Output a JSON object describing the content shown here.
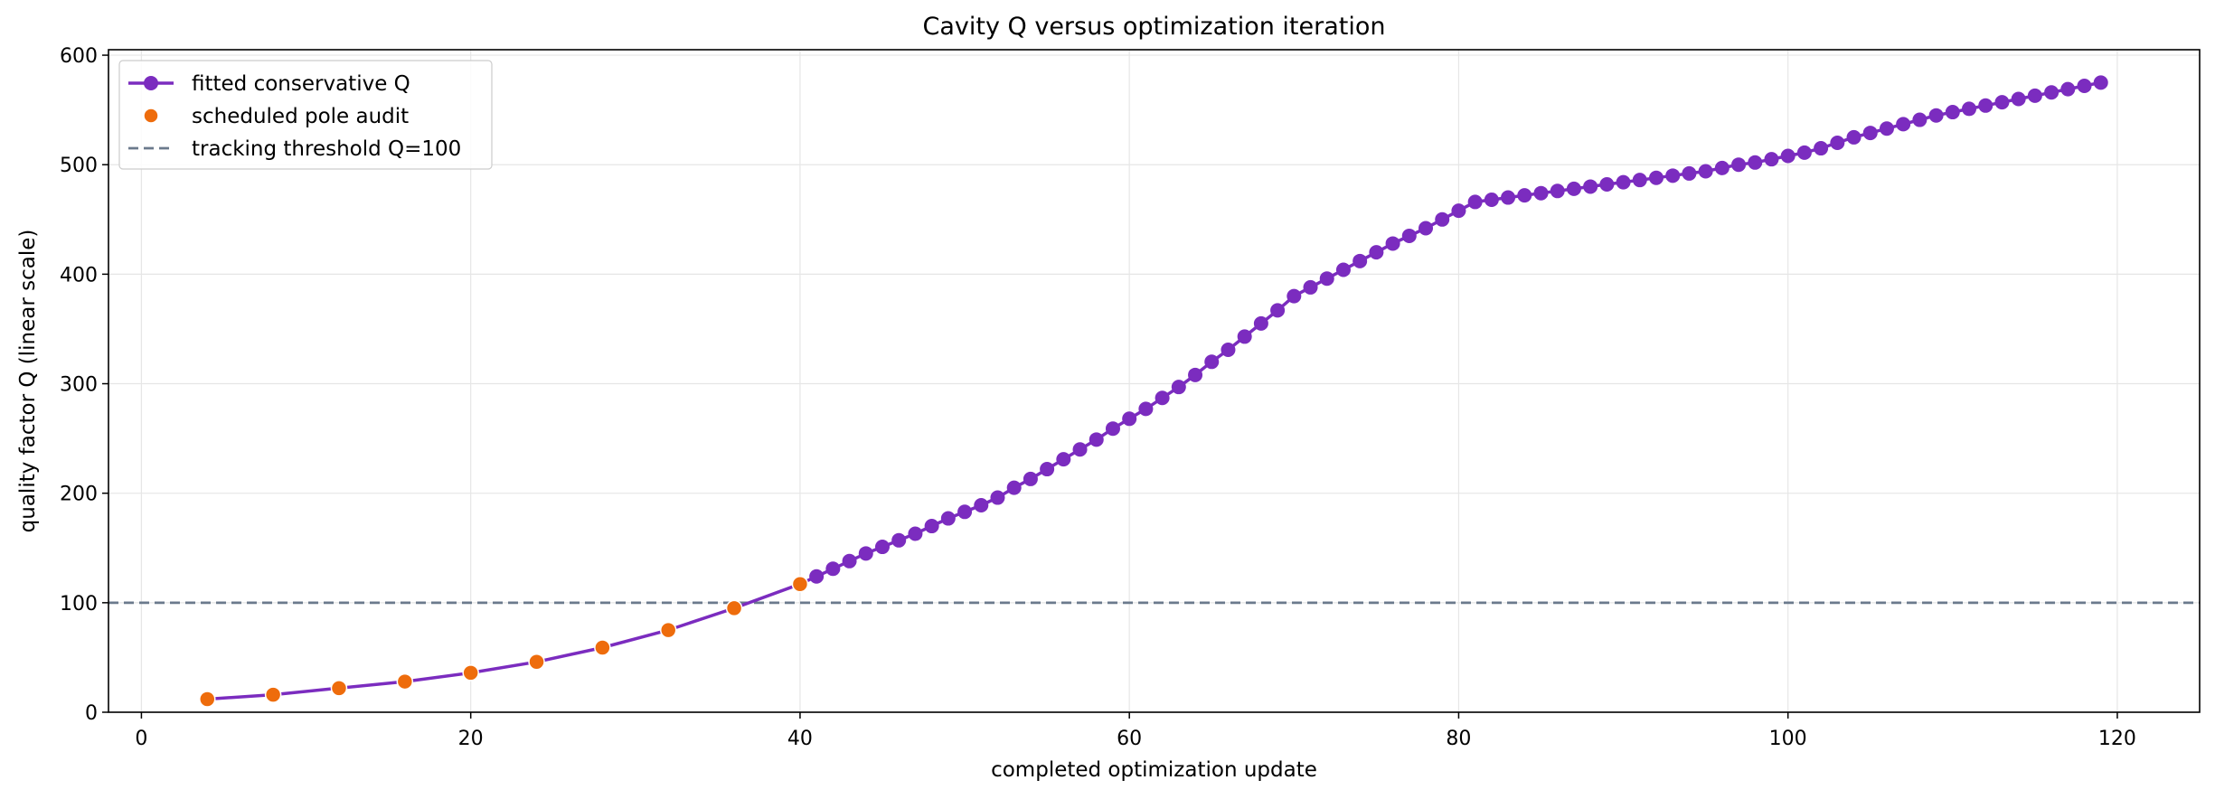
{
  "chart_data": {
    "type": "line",
    "title": "Cavity Q versus optimization iteration",
    "xlabel": "completed optimization update",
    "ylabel": "quality factor Q (linear scale)",
    "xlim": [
      -2,
      125
    ],
    "ylim": [
      0,
      605
    ],
    "xticks": [
      0,
      20,
      40,
      60,
      80,
      100,
      120
    ],
    "yticks": [
      0,
      100,
      200,
      300,
      400,
      500,
      600
    ],
    "grid": true,
    "legend_position": "top-left",
    "series": [
      {
        "name": "fitted conservative Q",
        "color": "#7b2cbf",
        "x": [
          4,
          8,
          12,
          16,
          20,
          24,
          28,
          32,
          36,
          40,
          41,
          42,
          43,
          44,
          45,
          46,
          47,
          48,
          49,
          50,
          51,
          52,
          53,
          54,
          55,
          56,
          57,
          58,
          59,
          60,
          61,
          62,
          63,
          64,
          65,
          66,
          67,
          68,
          69,
          70,
          71,
          72,
          73,
          74,
          75,
          76,
          77,
          78,
          79,
          80,
          81,
          82,
          83,
          84,
          85,
          86,
          87,
          88,
          89,
          90,
          91,
          92,
          93,
          94,
          95,
          96,
          97,
          98,
          99,
          100,
          101,
          102,
          103,
          104,
          105,
          106,
          107,
          108,
          109,
          110,
          111,
          112,
          113,
          114,
          115,
          116,
          117,
          118,
          119
        ],
        "y": [
          12,
          16,
          22,
          28,
          36,
          46,
          59,
          75,
          95,
          117,
          124,
          131,
          138,
          145,
          151,
          157,
          163,
          170,
          177,
          183,
          189,
          196,
          205,
          213,
          222,
          231,
          240,
          249,
          259,
          268,
          277,
          287,
          297,
          308,
          320,
          331,
          343,
          355,
          367,
          380,
          388,
          396,
          404,
          412,
          420,
          428,
          435,
          442,
          450,
          458,
          466,
          468,
          470,
          472,
          474,
          476,
          478,
          480,
          482,
          484,
          486,
          488,
          490,
          492,
          494,
          497,
          500,
          502,
          505,
          508,
          511,
          515,
          520,
          525,
          529,
          533,
          537,
          541,
          545,
          548,
          551,
          554,
          557,
          560,
          563,
          566,
          569,
          572,
          575
        ]
      },
      {
        "name": "scheduled pole audit",
        "color": "#ee6c0c",
        "x": [
          4,
          8,
          12,
          16,
          20,
          24,
          28,
          32,
          36,
          40
        ],
        "y": [
          12,
          16,
          22,
          28,
          36,
          46,
          59,
          75,
          95,
          117
        ]
      },
      {
        "name": "tracking threshold Q=100",
        "color": "#6b7a8c",
        "y": 100
      }
    ]
  }
}
